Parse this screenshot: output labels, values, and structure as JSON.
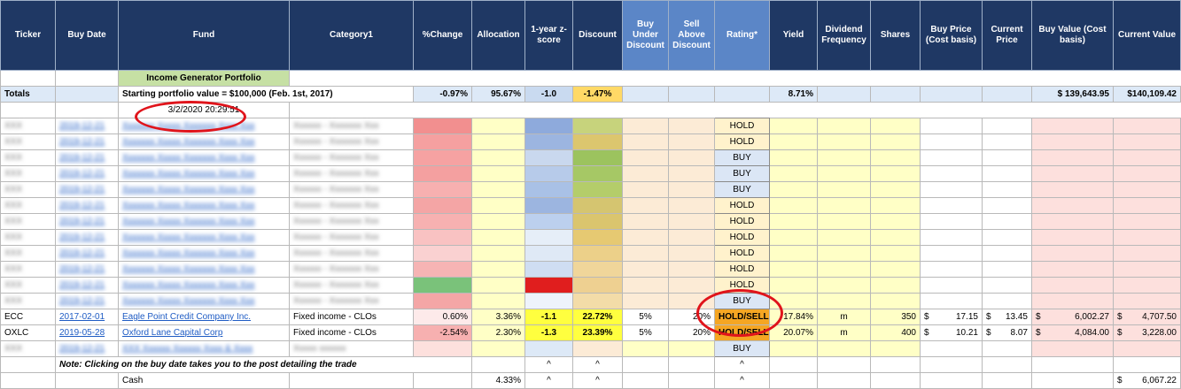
{
  "headers": {
    "ticker": "Ticker",
    "buy_date": "Buy Date",
    "fund": "Fund",
    "category": "Category1",
    "pct_change": "%Change",
    "allocation": "Allocation",
    "zscore": "1-year z-score",
    "discount": "Discount",
    "buy_under": "Buy Under Discount",
    "sell_above": "Sell Above Discount",
    "rating": "Rating*",
    "yield": "Yield",
    "div_freq": "Dividend Frequency",
    "shares": "Shares",
    "buy_price": "Buy Price (Cost basis)",
    "current_price": "Current Price",
    "buy_value": "Buy Value (Cost basis)",
    "current_value": "Current Value"
  },
  "portfolio_title": "Income Generator Portfolio",
  "totals": {
    "label": "Totals",
    "starting": "Starting portfolio value = $100,000 (Feb. 1st, 2017)",
    "pct_change": "-0.97%",
    "allocation": "95.67%",
    "zscore": "-1.0",
    "discount": "-1.47%",
    "yield": "8.71%",
    "buy_value": "$   139,643.95",
    "current_value": "$140,109.42"
  },
  "timestamp": "3/2/2020 20:29:51",
  "ratings_blurred": [
    "HOLD",
    "HOLD",
    "BUY",
    "BUY",
    "BUY",
    "HOLD",
    "HOLD",
    "HOLD",
    "HOLD",
    "HOLD",
    "HOLD",
    "BUY"
  ],
  "rows": [
    {
      "ticker": "ECC",
      "buy_date": "2017-02-01",
      "fund": "Eagle Point Credit Company Inc.",
      "category": "Fixed income - CLOs",
      "pct_change": "0.60%",
      "allocation": "3.36%",
      "zscore": "-1.1",
      "discount": "22.72%",
      "buy_under": "5%",
      "sell_above": "20%",
      "rating": "HOLD/SELL",
      "yield": "17.84%",
      "div_freq": "m",
      "shares": "350",
      "buy_price_sym": "$",
      "buy_price": "17.15",
      "current_price_sym": "$",
      "current_price": "13.45",
      "buy_value_sym": "$",
      "buy_value": "6,002.27",
      "current_value_sym": "$",
      "current_value": "4,707.50"
    },
    {
      "ticker": "OXLC",
      "buy_date": "2019-05-28",
      "fund": "Oxford Lane Capital Corp",
      "category": "Fixed income - CLOs",
      "pct_change": "-2.54%",
      "allocation": "2.30%",
      "zscore": "-1.3",
      "discount": "23.39%",
      "buy_under": "5%",
      "sell_above": "20%",
      "rating": "HOLD/SELL",
      "yield": "20.07%",
      "div_freq": "m",
      "shares": "400",
      "buy_price_sym": "$",
      "buy_price": "10.21",
      "current_price_sym": "$",
      "current_price": "8.07",
      "buy_value_sym": "$",
      "buy_value": "4,084.00",
      "current_value_sym": "$",
      "current_value": "3,228.00"
    }
  ],
  "last_blurred_rating": "BUY",
  "note": "Note: Clicking on the buy date takes you to the post detailing the trade",
  "caret": "^",
  "cash": {
    "label": "Cash",
    "allocation": "4.33%",
    "sym": "$",
    "value": "6,067.22"
  }
}
